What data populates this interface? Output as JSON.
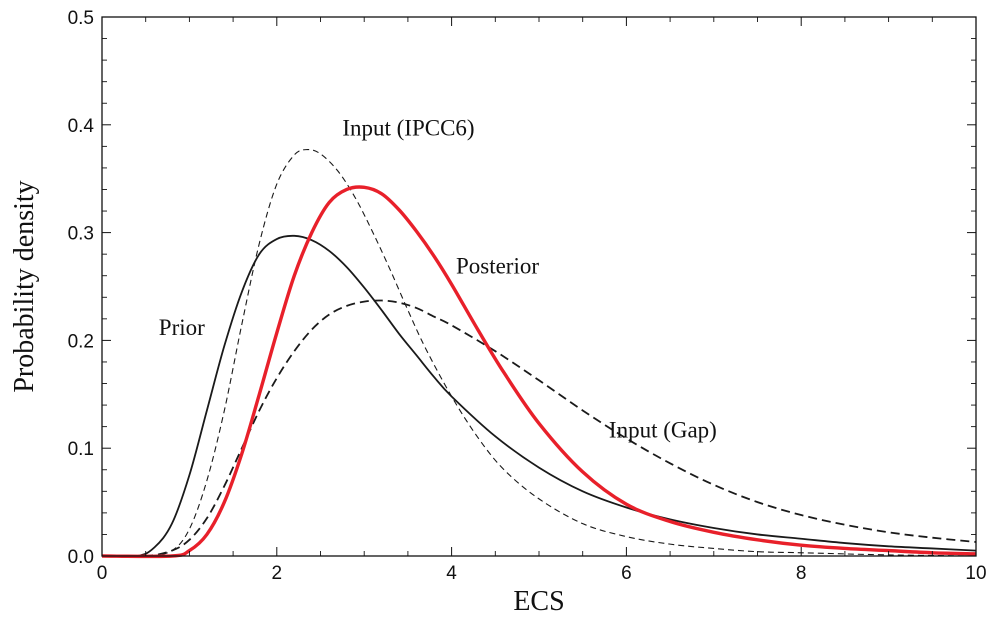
{
  "chart_data": {
    "type": "line",
    "title": "",
    "xlabel": "ECS",
    "ylabel": "Probability density",
    "xlim": [
      0,
      10
    ],
    "ylim": [
      0,
      0.5
    ],
    "grid": false,
    "legend": "none",
    "xticks": [
      0,
      2,
      4,
      6,
      8,
      10
    ],
    "xtick_labels": [
      "0",
      "2",
      "4",
      "6",
      "8",
      "10"
    ],
    "yticks": [
      0.0,
      0.1,
      0.2,
      0.3,
      0.4,
      0.5
    ],
    "ytick_labels": [
      "0.0",
      "0.1",
      "0.2",
      "0.3",
      "0.4",
      "0.5"
    ],
    "annotations": [
      {
        "text": "Input (IPCC6)",
        "x": 2.75,
        "y": 0.39
      },
      {
        "text": "Posterior",
        "x": 4.05,
        "y": 0.262
      },
      {
        "text": "Prior",
        "x": 0.65,
        "y": 0.205
      },
      {
        "text": "Input (Gap)",
        "x": 5.8,
        "y": 0.11
      }
    ],
    "series": [
      {
        "name": "Prior",
        "color": "#1a1a1a",
        "style": "solid",
        "x": [
          0,
          0.4,
          0.6,
          0.8,
          1.0,
          1.2,
          1.4,
          1.6,
          1.8,
          2.0,
          2.2,
          2.4,
          2.6,
          2.8,
          3.0,
          3.2,
          3.4,
          3.6,
          3.8,
          4.0,
          4.5,
          5.0,
          5.5,
          6.0,
          6.5,
          7.0,
          7.5,
          8.0,
          8.5,
          9.0,
          9.5,
          10.0
        ],
        "y": [
          0,
          0.0,
          0.008,
          0.03,
          0.075,
          0.135,
          0.195,
          0.245,
          0.28,
          0.294,
          0.297,
          0.293,
          0.283,
          0.268,
          0.249,
          0.228,
          0.206,
          0.186,
          0.166,
          0.148,
          0.111,
          0.082,
          0.06,
          0.045,
          0.034,
          0.026,
          0.02,
          0.016,
          0.012,
          0.009,
          0.007,
          0.005
        ]
      },
      {
        "name": "Input (IPCC6)",
        "color": "#1a1a1a",
        "style": "thin-dashed",
        "x": [
          0,
          0.5,
          0.8,
          1.0,
          1.2,
          1.4,
          1.6,
          1.8,
          2.0,
          2.2,
          2.35,
          2.5,
          2.7,
          2.9,
          3.1,
          3.3,
          3.5,
          3.7,
          4.0,
          4.3,
          4.6,
          5.0,
          5.5,
          6.0,
          6.5,
          7.0,
          7.5,
          8.0,
          9.0,
          10.0
        ],
        "y": [
          0,
          0.0,
          0.005,
          0.025,
          0.07,
          0.135,
          0.215,
          0.29,
          0.345,
          0.372,
          0.377,
          0.373,
          0.357,
          0.332,
          0.3,
          0.265,
          0.228,
          0.193,
          0.148,
          0.11,
          0.08,
          0.053,
          0.03,
          0.018,
          0.011,
          0.007,
          0.004,
          0.003,
          0.001,
          0.0
        ]
      },
      {
        "name": "Input (Gap)",
        "color": "#1a1a1a",
        "style": "dashed",
        "x": [
          0,
          0.5,
          0.8,
          1.0,
          1.2,
          1.4,
          1.6,
          1.8,
          2.0,
          2.2,
          2.4,
          2.6,
          2.8,
          3.0,
          3.2,
          3.4,
          3.6,
          3.8,
          4.0,
          4.5,
          5.0,
          5.5,
          6.0,
          6.5,
          7.0,
          7.5,
          8.0,
          8.5,
          9.0,
          9.5,
          10.0
        ],
        "y": [
          0,
          0.0,
          0.005,
          0.015,
          0.035,
          0.065,
          0.1,
          0.135,
          0.165,
          0.19,
          0.21,
          0.224,
          0.232,
          0.236,
          0.237,
          0.235,
          0.23,
          0.222,
          0.214,
          0.19,
          0.163,
          0.135,
          0.109,
          0.086,
          0.066,
          0.05,
          0.038,
          0.029,
          0.022,
          0.017,
          0.013
        ]
      },
      {
        "name": "Posterior",
        "color": "#e8202a",
        "style": "solid-thick",
        "x": [
          0,
          0.8,
          1.0,
          1.2,
          1.4,
          1.6,
          1.8,
          2.0,
          2.2,
          2.4,
          2.6,
          2.8,
          3.0,
          3.2,
          3.4,
          3.6,
          3.8,
          4.0,
          4.3,
          4.6,
          5.0,
          5.5,
          6.0,
          6.5,
          7.0,
          7.5,
          8.0,
          8.5,
          9.0,
          9.5,
          10.0
        ],
        "y": [
          0,
          0.0,
          0.005,
          0.02,
          0.05,
          0.095,
          0.15,
          0.207,
          0.26,
          0.3,
          0.328,
          0.34,
          0.342,
          0.336,
          0.321,
          0.301,
          0.278,
          0.252,
          0.21,
          0.17,
          0.123,
          0.078,
          0.048,
          0.032,
          0.022,
          0.015,
          0.01,
          0.007,
          0.005,
          0.003,
          0.002
        ]
      }
    ]
  }
}
